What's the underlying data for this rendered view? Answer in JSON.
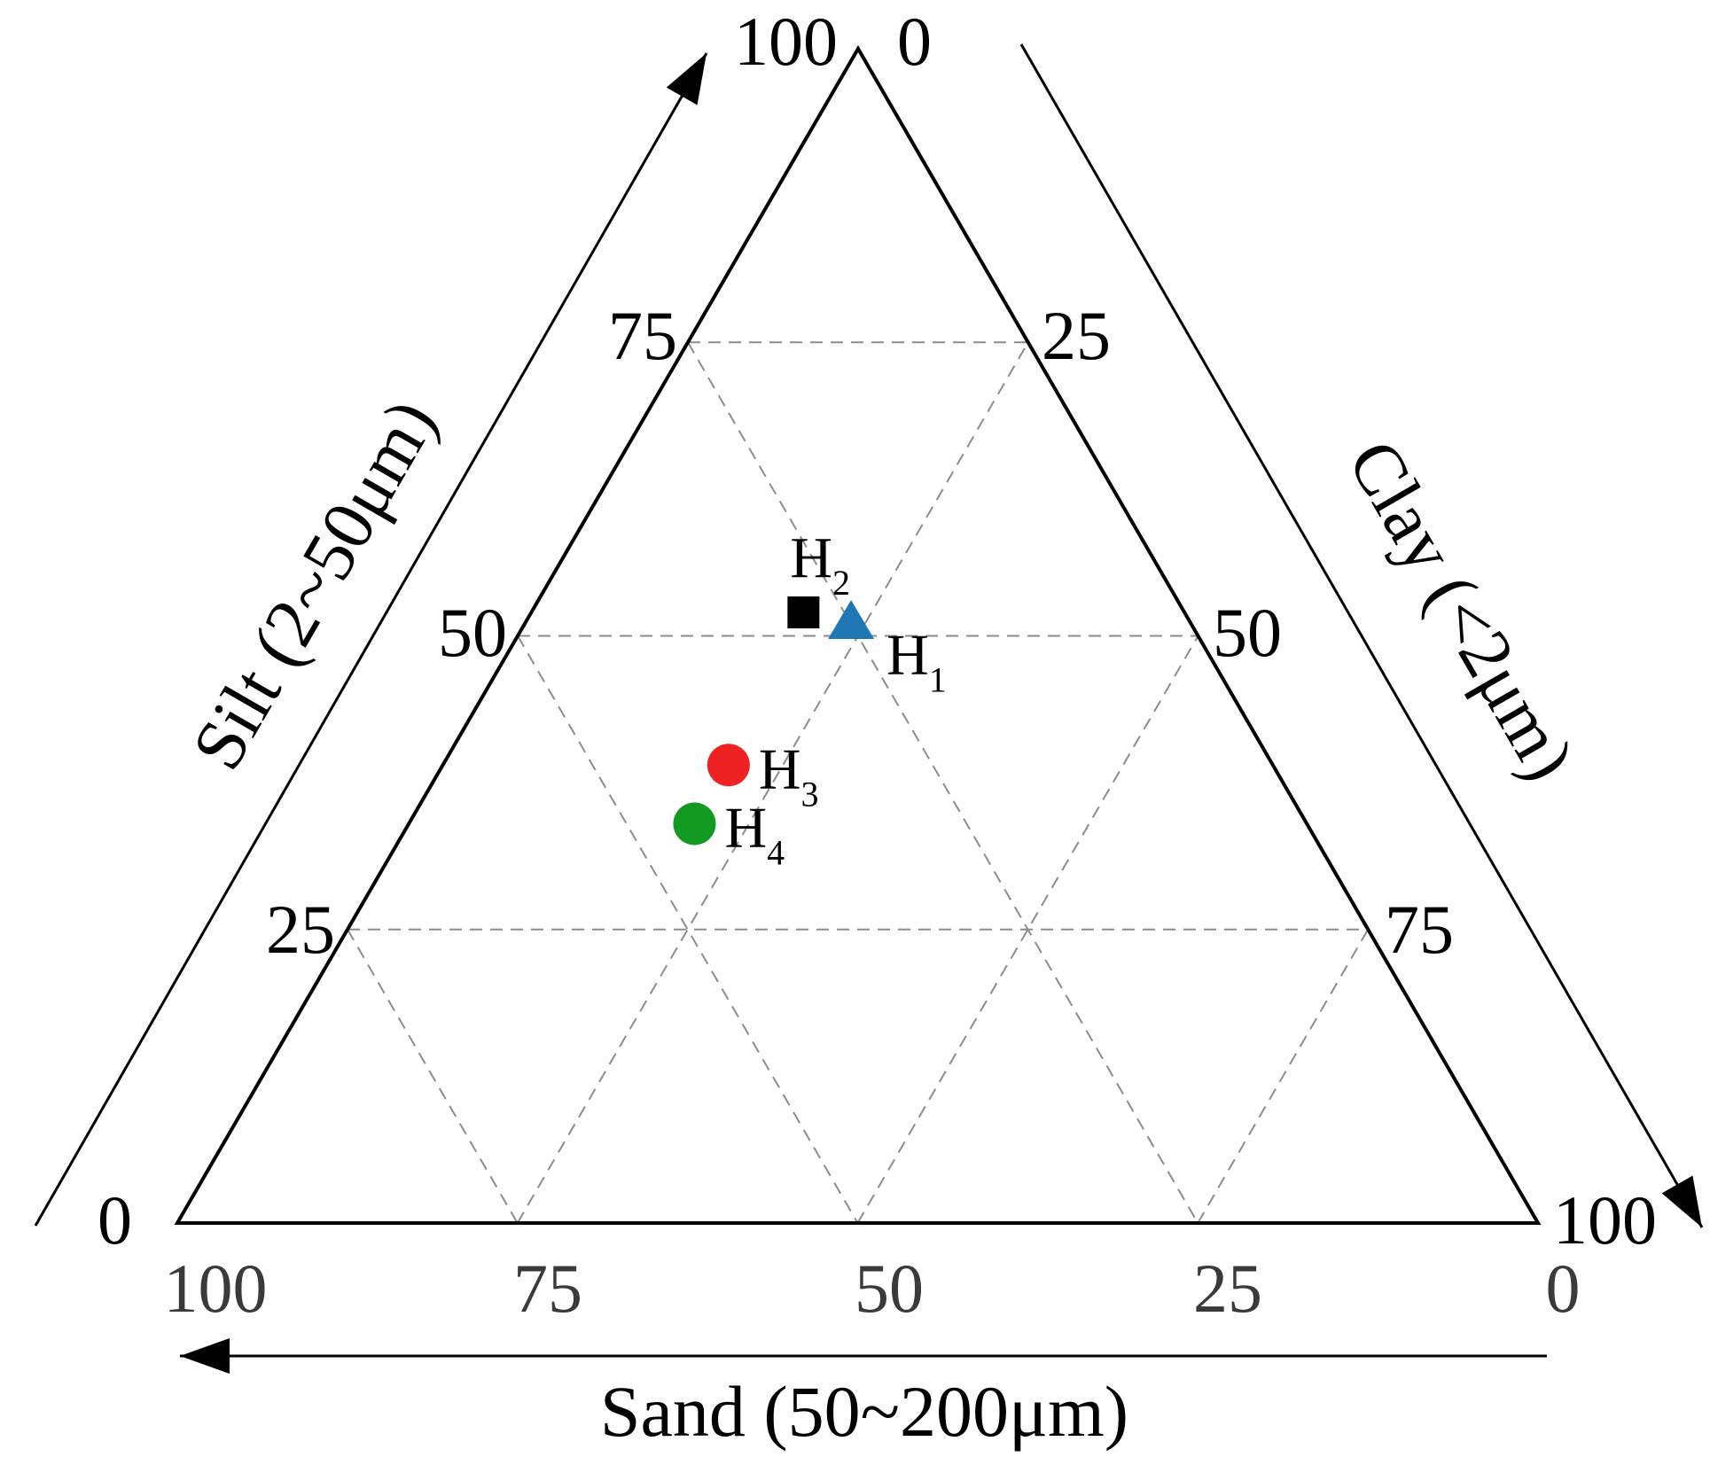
{
  "chart_data": {
    "type": "scatter",
    "subtype": "ternary",
    "axes": {
      "silt": {
        "label": "Silt (2~50μm)",
        "ticks": [
          "0",
          "25",
          "50",
          "75",
          "100"
        ]
      },
      "clay": {
        "label": "Clay (<2μm)",
        "ticks": [
          "0",
          "25",
          "50",
          "75",
          "100"
        ]
      },
      "sand": {
        "label": "Sand (50~200μm)",
        "ticks": [
          "100",
          "75",
          "50",
          "25",
          "0"
        ]
      }
    },
    "grid": true,
    "grid_step": 25,
    "points": [
      {
        "name": "H",
        "sub": "1",
        "marker": "triangle",
        "color": "#1f77b4",
        "sand": 25,
        "silt": 51,
        "clay": 24
      },
      {
        "name": "H",
        "sub": "2",
        "marker": "square",
        "color": "#000000",
        "sand": 28,
        "silt": 52,
        "clay": 20
      },
      {
        "name": "H",
        "sub": "3",
        "marker": "circle",
        "color": "#ee2222",
        "sand": 40,
        "silt": 39,
        "clay": 21
      },
      {
        "name": "H",
        "sub": "4",
        "marker": "circle",
        "color": "#119922",
        "sand": 45,
        "silt": 34,
        "clay": 21
      }
    ]
  }
}
